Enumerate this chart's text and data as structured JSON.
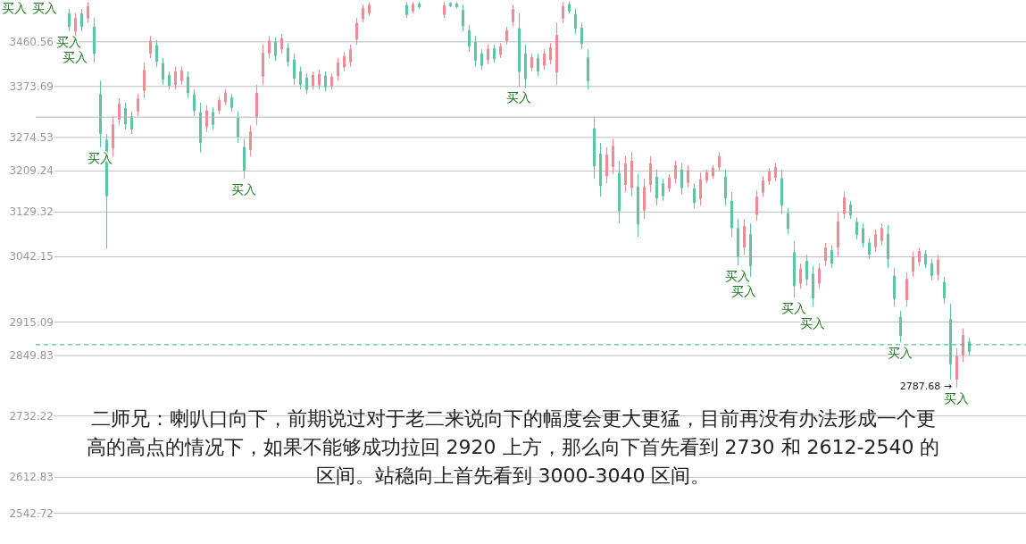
{
  "chart_data": {
    "type": "candlestick",
    "title": "二师兄：喇叭口向下，前期说过对于老二来说向下的幅度会更大更猛，目前再没有办法形成一个更高的高点的情况下，如果不能够成功拉回 2920 上方，那么向下首先看到 2730 和 2612-2540 的区间。站稳向上首先看到 3000-3040 区间。",
    "categories": [
      null,
      null,
      null,
      null,
      null,
      null,
      null,
      null,
      null,
      null,
      null,
      null,
      null,
      null,
      null,
      null,
      null,
      null,
      null,
      null,
      null,
      null,
      null,
      null,
      null,
      null,
      null,
      null,
      null,
      null,
      null,
      null,
      null,
      null,
      null,
      null,
      null,
      null,
      null,
      null,
      null,
      null,
      null,
      null,
      null,
      null,
      null,
      null,
      null,
      null,
      null,
      null,
      null,
      null,
      null,
      null,
      null,
      null,
      null,
      null,
      null,
      null,
      null,
      null,
      null,
      null,
      null,
      null,
      null,
      null,
      null,
      null,
      null,
      null,
      null,
      null,
      null,
      null,
      null,
      null,
      null,
      null,
      null,
      null,
      null,
      null,
      null,
      null,
      null,
      null,
      null,
      null,
      null,
      null,
      null,
      null,
      null,
      null,
      null,
      null,
      null,
      null,
      null,
      null,
      null,
      null,
      null,
      null,
      null,
      null,
      null,
      null,
      null,
      null,
      null,
      null,
      null,
      null,
      null,
      null,
      null,
      null,
      null,
      null,
      null,
      null,
      null,
      null,
      null,
      null,
      null,
      null,
      null,
      null,
      null,
      null,
      null,
      null,
      null,
      null,
      null,
      null,
      null,
      null,
      null
    ],
    "ohlc": [
      [
        3516,
        3525,
        3481,
        3490
      ],
      [
        3481,
        3516,
        3472,
        3507
      ],
      [
        3516,
        3525,
        3481,
        3490
      ],
      [
        3506,
        3538,
        3498,
        3530
      ],
      [
        3490,
        3507,
        3420,
        3437
      ],
      [
        3359,
        3385,
        3255,
        3281
      ],
      [
        3270,
        3281,
        3058,
        3160
      ],
      [
        3253,
        3316,
        3237,
        3300
      ],
      [
        3309,
        3351,
        3298,
        3340
      ],
      [
        3332,
        3342,
        3290,
        3300
      ],
      [
        3316,
        3325,
        3281,
        3290
      ],
      [
        3325,
        3359,
        3316,
        3350
      ],
      [
        3365,
        3420,
        3351,
        3406
      ],
      [
        3438,
        3472,
        3429,
        3463
      ],
      [
        3454,
        3464,
        3412,
        3422
      ],
      [
        3419,
        3429,
        3377,
        3387
      ],
      [
        3396,
        3403,
        3368,
        3375
      ],
      [
        3377,
        3412,
        3368,
        3403
      ],
      [
        3384,
        3412,
        3377,
        3405
      ],
      [
        3393,
        3403,
        3351,
        3361
      ],
      [
        3358,
        3368,
        3316,
        3326
      ],
      [
        3323,
        3342,
        3245,
        3264
      ],
      [
        3295,
        3337,
        3285,
        3327
      ],
      [
        3324,
        3333,
        3290,
        3299
      ],
      [
        3326,
        3354,
        3319,
        3347
      ],
      [
        3343,
        3368,
        3337,
        3362
      ],
      [
        3352,
        3359,
        3325,
        3332
      ],
      [
        3313,
        3325,
        3264,
        3276
      ],
      [
        3256,
        3272,
        3194,
        3210
      ],
      [
        3250,
        3298,
        3238,
        3286
      ],
      [
        3314,
        3377,
        3298,
        3361
      ],
      [
        3393,
        3455,
        3377,
        3439
      ],
      [
        3438,
        3472,
        3429,
        3463
      ],
      [
        3460,
        3469,
        3424,
        3433
      ],
      [
        3446,
        3476,
        3438,
        3468
      ],
      [
        3449,
        3458,
        3412,
        3421
      ],
      [
        3426,
        3438,
        3377,
        3389
      ],
      [
        3403,
        3412,
        3368,
        3377
      ],
      [
        3391,
        3399,
        3359,
        3367
      ],
      [
        3375,
        3403,
        3368,
        3396
      ],
      [
        3376,
        3406,
        3368,
        3398
      ],
      [
        3395,
        3403,
        3364,
        3372
      ],
      [
        3374,
        3399,
        3368,
        3393
      ],
      [
        3394,
        3429,
        3385,
        3420
      ],
      [
        3411,
        3441,
        3403,
        3433
      ],
      [
        3421,
        3455,
        3412,
        3446
      ],
      [
        3465,
        3507,
        3455,
        3497
      ],
      [
        3505,
        3533,
        3498,
        3526
      ],
      [
        3516,
        3538,
        3511,
        3533
      ],
      null,
      null,
      null,
      null,
      null,
      [
        3532,
        3538,
        3507,
        3513
      ],
      [
        3520,
        3538,
        3516,
        3534
      ],
      [
        3535,
        3538,
        3525,
        3528
      ],
      null,
      null,
      null,
      [
        3513,
        3538,
        3507,
        3532
      ],
      [
        3536,
        3538,
        3528,
        3530
      ],
      [
        3535,
        3538,
        3525,
        3528
      ],
      [
        3523,
        3533,
        3481,
        3491
      ],
      [
        3483,
        3493,
        3441,
        3451
      ],
      [
        3460,
        3472,
        3412,
        3424
      ],
      [
        3438,
        3446,
        3406,
        3414
      ],
      [
        3425,
        3455,
        3417,
        3447
      ],
      [
        3448,
        3455,
        3420,
        3427
      ],
      [
        3435,
        3458,
        3429,
        3452
      ],
      [
        3462,
        3490,
        3455,
        3483
      ],
      [
        3499,
        3533,
        3490,
        3524
      ],
      [
        3487,
        3516,
        3373,
        3402
      ],
      [
        3438,
        3455,
        3371,
        3388
      ],
      [
        3410,
        3438,
        3403,
        3431
      ],
      [
        3429,
        3438,
        3394,
        3403
      ],
      [
        3414,
        3446,
        3406,
        3438
      ],
      [
        3425,
        3458,
        3417,
        3450
      ],
      [
        3401,
        3498,
        3377,
        3474
      ],
      [
        3506,
        3538,
        3498,
        3530
      ],
      [
        3534,
        3538,
        3516,
        3520
      ],
      [
        3515,
        3525,
        3476,
        3486
      ],
      [
        3488,
        3498,
        3446,
        3456
      ],
      [
        3430,
        3446,
        3368,
        3384
      ],
      [
        3292,
        3316,
        3194,
        3218
      ],
      [
        3243,
        3264,
        3159,
        3180
      ],
      [
        3199,
        3255,
        3185,
        3241
      ],
      [
        3217,
        3272,
        3203,
        3258
      ],
      [
        3205,
        3229,
        3107,
        3131
      ],
      [
        3182,
        3238,
        3168,
        3224
      ],
      [
        3176,
        3246,
        3159,
        3229
      ],
      [
        3179,
        3203,
        3081,
        3105
      ],
      [
        3132,
        3194,
        3116,
        3178
      ],
      [
        3182,
        3238,
        3168,
        3224
      ],
      [
        3198,
        3212,
        3142,
        3156
      ],
      [
        3185,
        3194,
        3151,
        3160
      ],
      [
        3175,
        3203,
        3168,
        3196
      ],
      [
        3194,
        3229,
        3185,
        3220
      ],
      [
        3212,
        3224,
        3164,
        3176
      ],
      [
        3186,
        3220,
        3177,
        3211
      ],
      [
        3175,
        3185,
        3137,
        3147
      ],
      [
        3155,
        3206,
        3142,
        3193
      ],
      [
        3190,
        3212,
        3185,
        3207
      ],
      [
        3199,
        3220,
        3194,
        3215
      ],
      [
        3216,
        3246,
        3208,
        3238
      ],
      [
        3198,
        3212,
        3142,
        3156
      ],
      [
        3151,
        3168,
        3081,
        3098
      ],
      [
        3098,
        3116,
        3025,
        3043
      ],
      [
        3060,
        3116,
        3046,
        3102
      ],
      [
        3086,
        3107,
        3003,
        3024
      ],
      [
        3124,
        3171,
        3112,
        3159
      ],
      [
        3167,
        3199,
        3159,
        3191
      ],
      [
        3189,
        3215,
        3182,
        3208
      ],
      [
        3196,
        3224,
        3189,
        3217
      ],
      [
        3195,
        3212,
        3125,
        3142
      ],
      [
        3127,
        3137,
        3086,
        3096
      ],
      [
        3051,
        3073,
        2963,
        2985
      ],
      [
        2990,
        3029,
        2980,
        3019
      ],
      [
        3034,
        3046,
        2986,
        2998
      ],
      [
        3009,
        3025,
        2945,
        2961
      ],
      [
        2990,
        3029,
        2980,
        3019
      ],
      [
        3034,
        3069,
        3025,
        3060
      ],
      [
        3055,
        3064,
        3020,
        3029
      ],
      [
        3060,
        3128,
        3043,
        3111
      ],
      [
        3126,
        3168,
        3116,
        3158
      ],
      [
        3144,
        3151,
        3116,
        3123
      ],
      [
        3110,
        3119,
        3076,
        3085
      ],
      [
        3098,
        3107,
        3060,
        3069
      ],
      [
        3070,
        3078,
        3038,
        3046
      ],
      [
        3061,
        3095,
        3052,
        3086
      ],
      [
        3073,
        3107,
        3064,
        3098
      ],
      [
        3087,
        3104,
        3020,
        3037
      ],
      [
        3005,
        3020,
        2945,
        2960
      ],
      [
        2925,
        2937,
        2876,
        2888
      ],
      [
        2958,
        3012,
        2945,
        2999
      ],
      [
        3013,
        3052,
        3003,
        3042
      ],
      [
        3032,
        3060,
        3025,
        3053
      ],
      [
        3048,
        3055,
        3020,
        3027
      ],
      [
        3030,
        3038,
        2997,
        3005
      ],
      [
        3007,
        3046,
        2997,
        3036
      ],
      [
        2993,
        3003,
        2951,
        2961
      ],
      [
        2921,
        2951,
        2803,
        2833
      ],
      [
        2803,
        2864,
        2787.68,
        2849
      ],
      [
        2850,
        2903,
        2837,
        2890
      ],
      [
        2877,
        2884,
        2850,
        2857
      ]
    ],
    "colors": [
      "#5cc6a2",
      "#ef8a93",
      "#5cc6a2",
      "#ef8a93",
      "#5cc6a2",
      "#5cc6a2",
      "#5cc6a2",
      "#ef8a93",
      "#ef8a93",
      "#5cc6a2",
      "#5cc6a2",
      "#ef8a93",
      "#ef8a93",
      "#ef8a93",
      "#5cc6a2",
      "#5cc6a2",
      "#5cc6a2",
      "#ef8a93",
      "#ef8a93",
      "#5cc6a2",
      "#5cc6a2",
      "#5cc6a2",
      "#ef8a93",
      "#5cc6a2",
      "#ef8a93",
      "#ef8a93",
      "#5cc6a2",
      "#5cc6a2",
      "#5cc6a2",
      "#ef8a93",
      "#ef8a93",
      "#ef8a93",
      "#ef8a93",
      "#5cc6a2",
      "#ef8a93",
      "#5cc6a2",
      "#5cc6a2",
      "#5cc6a2",
      "#5cc6a2",
      "#ef8a93",
      "#ef8a93",
      "#5cc6a2",
      "#ef8a93",
      "#ef8a93",
      "#ef8a93",
      "#ef8a93",
      "#ef8a93",
      "#ef8a93",
      "#ef8a93",
      null,
      null,
      null,
      null,
      null,
      "#5cc6a2",
      "#ef8a93",
      "#5cc6a2",
      null,
      null,
      null,
      "#ef8a93",
      "#5cc6a2",
      "#5cc6a2",
      "#5cc6a2",
      "#5cc6a2",
      "#5cc6a2",
      "#5cc6a2",
      "#ef8a93",
      "#5cc6a2",
      "#ef8a93",
      "#ef8a93",
      "#ef8a93",
      "#5cc6a2",
      "#5cc6a2",
      "#ef8a93",
      "#5cc6a2",
      "#ef8a93",
      "#ef8a93",
      "#ef8a93",
      "#ef8a93",
      "#5cc6a2",
      "#5cc6a2",
      "#5cc6a2",
      "#5cc6a2",
      "#5cc6a2",
      "#5cc6a2",
      "#ef8a93",
      "#ef8a93",
      "#5cc6a2",
      "#ef8a93",
      "#ef8a93",
      "#5cc6a2",
      "#ef8a93",
      "#ef8a93",
      "#5cc6a2",
      "#5cc6a2",
      "#ef8a93",
      "#ef8a93",
      "#5cc6a2",
      "#ef8a93",
      "#5cc6a2",
      "#ef8a93",
      "#ef8a93",
      "#ef8a93",
      "#ef8a93",
      "#5cc6a2",
      "#5cc6a2",
      "#5cc6a2",
      "#ef8a93",
      "#5cc6a2",
      "#ef8a93",
      "#ef8a93",
      "#ef8a93",
      "#ef8a93",
      "#5cc6a2",
      "#5cc6a2",
      "#5cc6a2",
      "#ef8a93",
      "#5cc6a2",
      "#5cc6a2",
      "#ef8a93",
      "#ef8a93",
      "#5cc6a2",
      "#ef8a93",
      "#ef8a93",
      "#5cc6a2",
      "#5cc6a2",
      "#5cc6a2",
      "#5cc6a2",
      "#ef8a93",
      "#ef8a93",
      "#5cc6a2",
      "#5cc6a2",
      "#5cc6a2",
      "#ef8a93",
      "#ef8a93",
      "#ef8a93",
      "#5cc6a2",
      "#5cc6a2",
      "#ef8a93",
      "#5cc6a2",
      "#5cc6a2",
      "#ef8a93",
      "#ef8a93",
      "#5cc6a2"
    ],
    "value_labels": [
      null,
      null,
      null,
      null,
      null,
      null,
      null,
      null,
      null,
      null,
      null,
      null,
      null,
      null,
      null,
      null,
      null,
      null,
      null,
      null,
      null,
      null,
      null,
      null,
      null,
      null,
      null,
      null,
      null,
      null,
      null,
      null,
      null,
      null,
      null,
      null,
      null,
      null,
      null,
      null,
      null,
      null,
      null,
      null,
      null,
      null,
      null,
      null,
      null,
      null,
      null,
      null,
      null,
      null,
      null,
      null,
      null,
      null,
      null,
      null,
      null,
      null,
      null,
      null,
      null,
      null,
      null,
      null,
      null,
      null,
      null,
      null,
      null,
      null,
      null,
      null,
      null,
      null,
      null,
      null,
      null,
      null,
      null,
      null,
      null,
      null,
      null,
      null,
      null,
      null,
      null,
      null,
      null,
      null,
      null,
      null,
      null,
      null,
      null,
      null,
      null,
      null,
      null,
      null,
      null,
      null,
      null,
      null,
      null,
      null,
      null,
      null,
      null,
      null,
      null,
      null,
      null,
      null,
      null,
      null,
      null,
      null,
      null,
      null,
      null,
      null,
      null,
      null,
      null,
      null,
      null,
      null,
      null,
      null,
      null,
      null,
      null,
      null,
      null,
      null,
      null,
      null,
      "2787.68 →",
      null,
      null
    ],
    "ylim": [
      2483,
      3542
    ],
    "yticks": [
      3460.56,
      3373.69,
      3274.53,
      3209.24,
      3129.32,
      3042.15,
      2915.09,
      2849.83,
      2732.22,
      2612.83,
      2542.72
    ],
    "grid": "y",
    "ref_lines": [
      {
        "axis": "y",
        "value": 2871,
        "color": "#3aa88a",
        "line_style": "dashed"
      },
      {
        "axis": "y",
        "value": 3314,
        "color": "#b5b5b5",
        "line_style": "solid"
      }
    ],
    "annotations": [
      "买入",
      "买入",
      {
        "text": "买入",
        "y": 3481
      },
      {
        "text": "买入",
        "y": 3472
      },
      {
        "text": "买入",
        "y": 3255
      },
      {
        "text": "买入",
        "y": 3194
      },
      {
        "text": "买入",
        "y": 3373
      },
      {
        "text": "买入",
        "y": 3025
      },
      {
        "text": "买入",
        "y": 3046
      },
      {
        "text": "买入",
        "y": 2963
      },
      {
        "text": "买入",
        "y": 2945
      },
      {
        "text": "买入",
        "y": 2876
      },
      {
        "text": "买入",
        "y": 2787.68
      }
    ]
  }
}
